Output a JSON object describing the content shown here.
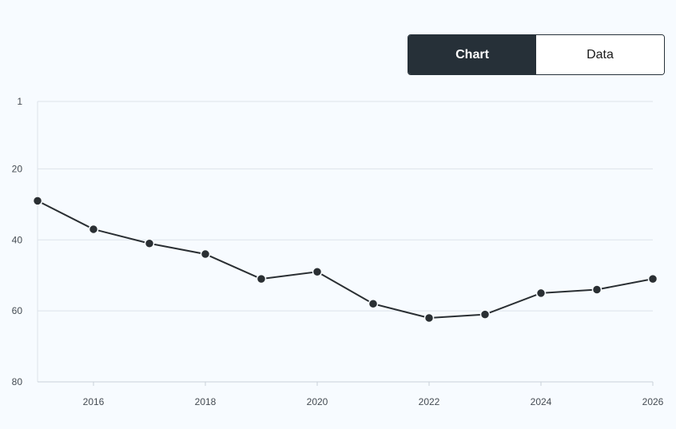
{
  "toggle": {
    "chart_label": "Chart",
    "data_label": "Data"
  },
  "colors": {
    "line": "#2a2f33",
    "grid": "#dde3ea",
    "toggle_active_bg": "#263038"
  },
  "chart_data": {
    "type": "line",
    "title": "",
    "xlabel": "",
    "ylabel": "",
    "y_reversed": true,
    "xlim": [
      2015,
      2026
    ],
    "ylim": [
      1,
      80
    ],
    "x_ticks": [
      2016,
      2018,
      2020,
      2022,
      2024,
      2026
    ],
    "y_ticks": [
      1,
      20,
      40,
      60,
      80
    ],
    "grid": true,
    "series": [
      {
        "x": [
          2015,
          2016,
          2017,
          2018,
          2019,
          2020,
          2021,
          2022,
          2023,
          2024,
          2025,
          2026
        ],
        "values": [
          29,
          37,
          41,
          44,
          51,
          49,
          58,
          62,
          61,
          55,
          54,
          51
        ]
      }
    ]
  }
}
